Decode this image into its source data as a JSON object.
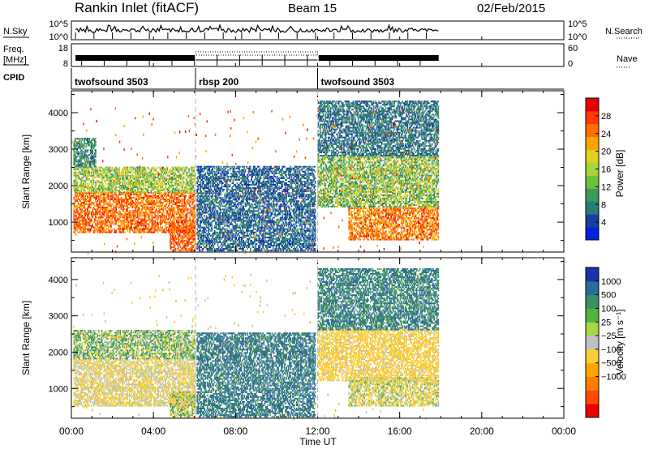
{
  "header": {
    "title": "Rankin Inlet (fitACF)",
    "beam": "Beam 15",
    "date": "02/Feb/2015"
  },
  "time_axis": {
    "label": "Time UT",
    "ticks": [
      "00:00",
      "04:00",
      "08:00",
      "12:00",
      "16:00",
      "20:00",
      "00:00"
    ],
    "tick_hours": [
      0,
      4,
      8,
      12,
      16,
      20,
      24
    ],
    "range_hours": [
      0,
      24
    ],
    "data_end_hour": 17.9
  },
  "nsky_panel": {
    "label": "N.Sky",
    "right_label": "N.Search",
    "left_ticks": [
      "10^5",
      "10^0"
    ],
    "right_ticks": [
      "10^5",
      "10^0"
    ]
  },
  "freq_panel": {
    "label_line1": "Freq.",
    "label_line2": "[MHz]",
    "left_ticks": [
      "18",
      "8"
    ],
    "right_ticks": [
      "60",
      "0"
    ],
    "right_label": "Nave"
  },
  "cpid_panel": {
    "label": "CPID",
    "segments": [
      {
        "name": "twofsound 3503",
        "start_hour": 0.0,
        "end_hour": 6.05
      },
      {
        "name": "rbsp 200",
        "start_hour": 6.05,
        "end_hour": 12.0
      },
      {
        "name": "twofsound 3503",
        "start_hour": 12.0,
        "end_hour": 17.9
      }
    ]
  },
  "chart_data": [
    {
      "type": "heatmap",
      "name": "power-panel",
      "ylabel": "Slant Range [km]",
      "yticks": [
        "1000",
        "2000",
        "3000",
        "4000"
      ],
      "ytick_values": [
        1000,
        2000,
        3000,
        4000
      ],
      "ylim": [
        180,
        4600
      ],
      "colorbar": {
        "label": "Power [dB]",
        "ticks": [
          "4",
          "8",
          "12",
          "16",
          "20",
          "24",
          "28"
        ],
        "tick_values": [
          4,
          8,
          12,
          16,
          20,
          24,
          28
        ],
        "range": [
          0,
          32
        ],
        "colors": [
          "#0022dd",
          "#1a3f9c",
          "#2c7b7a",
          "#3a9a5a",
          "#6dc23c",
          "#a9d43a",
          "#e0d020",
          "#ffa500",
          "#ff7000",
          "#ff3a00",
          "#e80000"
        ]
      },
      "regions": [
        {
          "t": [
            0.1,
            6.0
          ],
          "r": [
            700,
            1800
          ],
          "value_range": [
            20,
            30
          ]
        },
        {
          "t": [
            0.1,
            6.0
          ],
          "r": [
            1800,
            2500
          ],
          "value_range": [
            8,
            22
          ]
        },
        {
          "t": [
            0.1,
            1.2
          ],
          "r": [
            2500,
            3300
          ],
          "value_range": [
            4,
            14
          ]
        },
        {
          "t": [
            4.8,
            6.0
          ],
          "r": [
            200,
            900
          ],
          "value_range": [
            22,
            30
          ]
        },
        {
          "t": [
            6.1,
            11.9
          ],
          "r": [
            200,
            2500
          ],
          "value_range": [
            2,
            10
          ]
        },
        {
          "t": [
            12.0,
            17.9
          ],
          "r": [
            1400,
            2800
          ],
          "value_range": [
            6,
            22
          ]
        },
        {
          "t": [
            13.5,
            17.9
          ],
          "r": [
            500,
            1400
          ],
          "value_range": [
            18,
            30
          ]
        },
        {
          "t": [
            12.0,
            17.9
          ],
          "r": [
            2800,
            4300
          ],
          "value_range": [
            4,
            10
          ]
        }
      ]
    },
    {
      "type": "heatmap",
      "name": "velocity-panel",
      "ylabel": "Slant Range [km]",
      "yticks": [
        "1000",
        "2000",
        "3000",
        "4000"
      ],
      "ytick_values": [
        1000,
        2000,
        3000,
        4000
      ],
      "ylim": [
        180,
        4600
      ],
      "colorbar": {
        "label": "Velocity [m s⁻¹]",
        "ticks": [
          "1000",
          "500",
          "100",
          "25",
          "−25",
          "−100",
          "−500",
          "−1000"
        ],
        "tick_values": [
          1000,
          500,
          100,
          25,
          -25,
          -100,
          -500,
          -1000
        ],
        "colors": [
          "#1a33aa",
          "#2d6a9a",
          "#3a9060",
          "#56b23e",
          "#a7d64a",
          "#c0c0c0",
          "#ffcc33",
          "#ffa500",
          "#ff7d00",
          "#ff4a00",
          "#ee0000"
        ]
      },
      "regions": [
        {
          "t": [
            0.1,
            6.0
          ],
          "r": [
            500,
            1800
          ],
          "value_range": [
            -200,
            0
          ]
        },
        {
          "t": [
            0.1,
            6.0
          ],
          "r": [
            1800,
            2600
          ],
          "value_range": [
            -200,
            300
          ]
        },
        {
          "t": [
            4.8,
            6.0
          ],
          "r": [
            200,
            900
          ],
          "value_range": [
            -300,
            200
          ]
        },
        {
          "t": [
            6.1,
            11.9
          ],
          "r": [
            200,
            2500
          ],
          "value_range": [
            200,
            1000
          ]
        },
        {
          "t": [
            12.0,
            17.9
          ],
          "r": [
            1200,
            2600
          ],
          "value_range": [
            -500,
            0
          ]
        },
        {
          "t": [
            13.5,
            17.9
          ],
          "r": [
            500,
            1300
          ],
          "value_range": [
            -300,
            100
          ]
        },
        {
          "t": [
            12.0,
            17.9
          ],
          "r": [
            2600,
            4300
          ],
          "value_range": [
            0,
            1000
          ]
        }
      ]
    }
  ]
}
